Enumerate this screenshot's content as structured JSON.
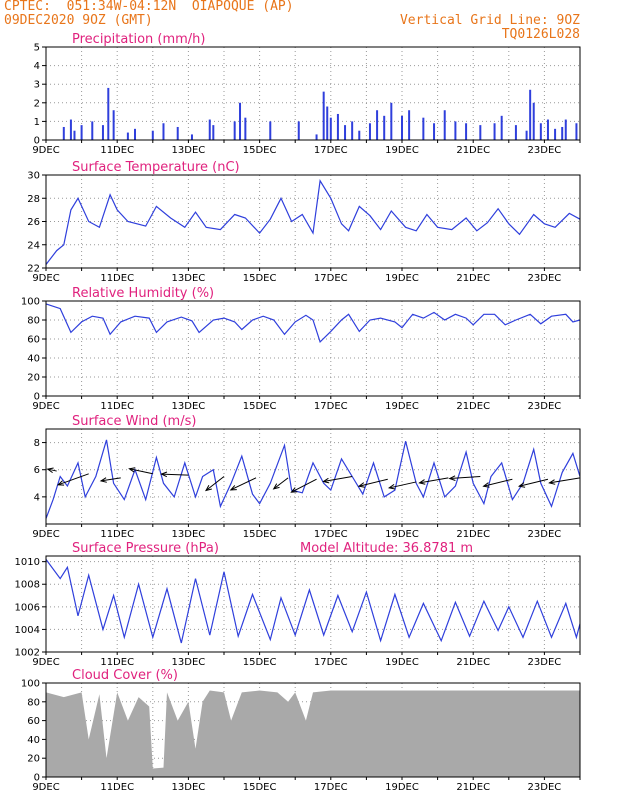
{
  "header": {
    "line1_left": "CPTEC:  051:34W-04:12N  OIAPOQUE (AP)",
    "line2_left": "09DEC2020 9OZ (GMT)",
    "line2_right": "Vertical Grid Line: 9OZ",
    "line3_right": "TQ0126L028"
  },
  "colors": {
    "line": "#2f3fdc",
    "title": "#e0227e",
    "header": "#e8751a",
    "cloud": "#a9a9a9",
    "arrow": "#000000"
  },
  "x_axis": {
    "tick_labels": [
      "9DEC",
      "11DEC",
      "13DEC",
      "15DEC",
      "17DEC",
      "19DEC",
      "21DEC",
      "23DEC"
    ],
    "day_range": [
      0,
      15
    ]
  },
  "chart_data": [
    {
      "type": "bar",
      "title": "Precipitation (mm/h)",
      "ylim": [
        0,
        5
      ],
      "yticks": [
        "0",
        "1",
        "2",
        "3",
        "4",
        "5"
      ],
      "grid": true,
      "points": [
        [
          0.5,
          0.7
        ],
        [
          0.7,
          1.1
        ],
        [
          0.8,
          0.5
        ],
        [
          1.0,
          0.8
        ],
        [
          1.3,
          1.0
        ],
        [
          1.6,
          0.8
        ],
        [
          1.75,
          2.8
        ],
        [
          1.9,
          1.6
        ],
        [
          2.3,
          0.4
        ],
        [
          2.5,
          0.6
        ],
        [
          3.0,
          0.5
        ],
        [
          3.3,
          0.9
        ],
        [
          3.7,
          0.7
        ],
        [
          4.1,
          0.3
        ],
        [
          4.6,
          1.1
        ],
        [
          4.7,
          0.8
        ],
        [
          5.3,
          1.0
        ],
        [
          5.45,
          2.0
        ],
        [
          5.6,
          1.2
        ],
        [
          6.3,
          1.0
        ],
        [
          7.1,
          1.0
        ],
        [
          7.6,
          0.3
        ],
        [
          7.8,
          2.6
        ],
        [
          7.9,
          1.8
        ],
        [
          8.0,
          1.2
        ],
        [
          8.2,
          1.4
        ],
        [
          8.4,
          0.8
        ],
        [
          8.6,
          1.0
        ],
        [
          8.8,
          0.5
        ],
        [
          9.1,
          0.9
        ],
        [
          9.3,
          1.6
        ],
        [
          9.5,
          1.3
        ],
        [
          9.7,
          2.0
        ],
        [
          10.0,
          1.3
        ],
        [
          10.2,
          1.6
        ],
        [
          10.6,
          1.2
        ],
        [
          10.9,
          0.9
        ],
        [
          11.2,
          1.6
        ],
        [
          11.5,
          1.0
        ],
        [
          11.8,
          0.9
        ],
        [
          12.2,
          0.8
        ],
        [
          12.6,
          0.9
        ],
        [
          12.8,
          1.3
        ],
        [
          13.2,
          0.8
        ],
        [
          13.5,
          0.5
        ],
        [
          13.6,
          2.7
        ],
        [
          13.7,
          2.0
        ],
        [
          13.9,
          0.9
        ],
        [
          14.1,
          1.1
        ],
        [
          14.3,
          0.6
        ],
        [
          14.5,
          0.7
        ],
        [
          14.6,
          1.1
        ],
        [
          14.9,
          0.9
        ]
      ]
    },
    {
      "type": "line",
      "title": "Surface Temperature (nC)",
      "ylim": [
        22,
        30
      ],
      "yticks": [
        "22",
        "24",
        "26",
        "28",
        "30"
      ],
      "grid": true,
      "points": [
        [
          0,
          22.3
        ],
        [
          0.3,
          23.5
        ],
        [
          0.5,
          24.0
        ],
        [
          0.7,
          27.0
        ],
        [
          0.9,
          28.0
        ],
        [
          1.2,
          26.0
        ],
        [
          1.5,
          25.5
        ],
        [
          1.8,
          28.3
        ],
        [
          2.0,
          27.0
        ],
        [
          2.3,
          26.0
        ],
        [
          2.8,
          25.6
        ],
        [
          3.1,
          27.3
        ],
        [
          3.5,
          26.3
        ],
        [
          3.9,
          25.5
        ],
        [
          4.2,
          26.8
        ],
        [
          4.5,
          25.5
        ],
        [
          4.9,
          25.3
        ],
        [
          5.3,
          26.6
        ],
        [
          5.6,
          26.3
        ],
        [
          6.0,
          25.0
        ],
        [
          6.3,
          26.2
        ],
        [
          6.6,
          28.0
        ],
        [
          6.9,
          26.0
        ],
        [
          7.2,
          26.6
        ],
        [
          7.5,
          25.0
        ],
        [
          7.7,
          29.5
        ],
        [
          8.0,
          28.0
        ],
        [
          8.3,
          25.8
        ],
        [
          8.5,
          25.2
        ],
        [
          8.8,
          27.3
        ],
        [
          9.1,
          26.5
        ],
        [
          9.4,
          25.3
        ],
        [
          9.7,
          26.9
        ],
        [
          10.1,
          25.5
        ],
        [
          10.4,
          25.2
        ],
        [
          10.7,
          26.6
        ],
        [
          11.0,
          25.5
        ],
        [
          11.4,
          25.3
        ],
        [
          11.8,
          26.3
        ],
        [
          12.1,
          25.2
        ],
        [
          12.4,
          25.9
        ],
        [
          12.7,
          27.1
        ],
        [
          13.0,
          25.8
        ],
        [
          13.3,
          24.9
        ],
        [
          13.7,
          26.6
        ],
        [
          14.0,
          25.8
        ],
        [
          14.3,
          25.5
        ],
        [
          14.7,
          26.7
        ],
        [
          15.0,
          26.2
        ]
      ]
    },
    {
      "type": "line",
      "title": "Relative Humidity (%)",
      "ylim": [
        0,
        100
      ],
      "yticks": [
        "0",
        "20",
        "40",
        "60",
        "80",
        "100"
      ],
      "grid": true,
      "points": [
        [
          0,
          97
        ],
        [
          0.4,
          92
        ],
        [
          0.7,
          67
        ],
        [
          1.0,
          78
        ],
        [
          1.3,
          84
        ],
        [
          1.6,
          82
        ],
        [
          1.8,
          65
        ],
        [
          2.1,
          78
        ],
        [
          2.5,
          84
        ],
        [
          2.9,
          82
        ],
        [
          3.1,
          67
        ],
        [
          3.4,
          78
        ],
        [
          3.8,
          83
        ],
        [
          4.1,
          79
        ],
        [
          4.3,
          67
        ],
        [
          4.7,
          80
        ],
        [
          5.0,
          82
        ],
        [
          5.3,
          78
        ],
        [
          5.5,
          70
        ],
        [
          5.8,
          80
        ],
        [
          6.1,
          84
        ],
        [
          6.4,
          80
        ],
        [
          6.7,
          65
        ],
        [
          7.0,
          78
        ],
        [
          7.3,
          85
        ],
        [
          7.5,
          80
        ],
        [
          7.7,
          57
        ],
        [
          8.0,
          68
        ],
        [
          8.3,
          80
        ],
        [
          8.5,
          86
        ],
        [
          8.8,
          68
        ],
        [
          9.1,
          80
        ],
        [
          9.4,
          82
        ],
        [
          9.8,
          78
        ],
        [
          10.0,
          72
        ],
        [
          10.3,
          86
        ],
        [
          10.6,
          82
        ],
        [
          10.9,
          88
        ],
        [
          11.2,
          80
        ],
        [
          11.5,
          86
        ],
        [
          11.8,
          82
        ],
        [
          12.0,
          75
        ],
        [
          12.3,
          86
        ],
        [
          12.6,
          86
        ],
        [
          12.9,
          75
        ],
        [
          13.2,
          80
        ],
        [
          13.6,
          86
        ],
        [
          13.9,
          76
        ],
        [
          14.2,
          84
        ],
        [
          14.6,
          86
        ],
        [
          14.8,
          78
        ],
        [
          15.0,
          80
        ]
      ]
    },
    {
      "type": "line",
      "title": "Surface Wind (m/s)",
      "ylim": [
        2,
        9
      ],
      "yticks": [
        "4",
        "6",
        "8"
      ],
      "grid": true,
      "points": [
        [
          0,
          2.4
        ],
        [
          0.2,
          3.8
        ],
        [
          0.4,
          5.5
        ],
        [
          0.6,
          4.8
        ],
        [
          0.9,
          6.5
        ],
        [
          1.1,
          4.0
        ],
        [
          1.4,
          5.5
        ],
        [
          1.7,
          8.2
        ],
        [
          1.9,
          5.0
        ],
        [
          2.2,
          3.8
        ],
        [
          2.5,
          6.0
        ],
        [
          2.8,
          3.8
        ],
        [
          3.1,
          6.9
        ],
        [
          3.3,
          5.0
        ],
        [
          3.6,
          4.0
        ],
        [
          3.9,
          6.5
        ],
        [
          4.2,
          4.0
        ],
        [
          4.4,
          5.5
        ],
        [
          4.7,
          6.0
        ],
        [
          4.9,
          3.3
        ],
        [
          5.2,
          5.0
        ],
        [
          5.5,
          7.0
        ],
        [
          5.8,
          4.2
        ],
        [
          6.0,
          3.5
        ],
        [
          6.3,
          5.0
        ],
        [
          6.7,
          7.8
        ],
        [
          6.9,
          4.5
        ],
        [
          7.2,
          4.3
        ],
        [
          7.5,
          6.5
        ],
        [
          7.8,
          5.0
        ],
        [
          8.0,
          4.5
        ],
        [
          8.3,
          6.8
        ],
        [
          8.6,
          5.5
        ],
        [
          8.9,
          4.2
        ],
        [
          9.2,
          6.5
        ],
        [
          9.5,
          4.0
        ],
        [
          9.8,
          4.5
        ],
        [
          10.1,
          8.1
        ],
        [
          10.4,
          5.0
        ],
        [
          10.6,
          4.0
        ],
        [
          10.9,
          6.5
        ],
        [
          11.2,
          4.0
        ],
        [
          11.5,
          4.8
        ],
        [
          11.8,
          7.3
        ],
        [
          12.0,
          5.0
        ],
        [
          12.3,
          3.5
        ],
        [
          12.5,
          5.5
        ],
        [
          12.8,
          6.5
        ],
        [
          13.1,
          3.8
        ],
        [
          13.4,
          5.0
        ],
        [
          13.7,
          7.5
        ],
        [
          13.9,
          5.0
        ],
        [
          14.2,
          3.3
        ],
        [
          14.5,
          5.8
        ],
        [
          14.8,
          7.2
        ],
        [
          15.0,
          5.5
        ]
      ],
      "vectors": [
        [
          0.3,
          5.9,
          -0.5,
          0.2
        ],
        [
          1.2,
          5.7,
          -1.7,
          -1.1
        ],
        [
          2.1,
          5.4,
          -1.1,
          -0.3
        ],
        [
          3.0,
          5.7,
          -1.3,
          0.5
        ],
        [
          4.0,
          5.6,
          -1.5,
          0.1
        ],
        [
          5.0,
          5.5,
          -1.0,
          -1.4
        ],
        [
          5.9,
          5.4,
          -1.4,
          -1.2
        ],
        [
          6.8,
          5.4,
          -0.8,
          -1.1
        ],
        [
          7.6,
          5.3,
          -1.4,
          -1.3
        ],
        [
          8.6,
          5.5,
          -1.6,
          -0.5
        ],
        [
          9.6,
          5.3,
          -1.6,
          -0.7
        ],
        [
          10.4,
          5.1,
          -1.5,
          -0.6
        ],
        [
          11.3,
          5.4,
          -1.6,
          -0.5
        ],
        [
          12.2,
          5.5,
          -1.7,
          -0.2
        ],
        [
          13.1,
          5.3,
          -1.6,
          -0.7
        ],
        [
          14.1,
          5.3,
          -1.6,
          -0.7
        ],
        [
          15.0,
          5.4,
          -1.7,
          -0.5
        ]
      ]
    },
    {
      "type": "line",
      "title": "Surface Pressure (hPa)",
      "subtitle": "Model Altitude: 36.8781 m",
      "ylim": [
        1002,
        1010.5
      ],
      "yticks": [
        "1002",
        "1004",
        "1006",
        "1008",
        "1010"
      ],
      "grid": true,
      "points": [
        [
          0,
          1010.2
        ],
        [
          0.4,
          1008.5
        ],
        [
          0.6,
          1009.5
        ],
        [
          0.9,
          1005.2
        ],
        [
          1.2,
          1008.8
        ],
        [
          1.6,
          1004.0
        ],
        [
          1.9,
          1007.0
        ],
        [
          2.2,
          1003.3
        ],
        [
          2.6,
          1008.0
        ],
        [
          3.0,
          1003.3
        ],
        [
          3.4,
          1007.6
        ],
        [
          3.8,
          1002.8
        ],
        [
          4.2,
          1008.5
        ],
        [
          4.6,
          1003.5
        ],
        [
          5.0,
          1009.1
        ],
        [
          5.4,
          1003.4
        ],
        [
          5.8,
          1007.1
        ],
        [
          6.3,
          1003.1
        ],
        [
          6.6,
          1006.8
        ],
        [
          7.0,
          1003.5
        ],
        [
          7.4,
          1007.5
        ],
        [
          7.8,
          1003.5
        ],
        [
          8.2,
          1007.0
        ],
        [
          8.6,
          1003.8
        ],
        [
          9.0,
          1007.3
        ],
        [
          9.4,
          1003.0
        ],
        [
          9.8,
          1007.1
        ],
        [
          10.2,
          1003.3
        ],
        [
          10.6,
          1006.3
        ],
        [
          11.1,
          1003.0
        ],
        [
          11.5,
          1006.4
        ],
        [
          11.9,
          1003.4
        ],
        [
          12.3,
          1006.5
        ],
        [
          12.7,
          1003.9
        ],
        [
          13.0,
          1006.0
        ],
        [
          13.4,
          1003.3
        ],
        [
          13.8,
          1006.5
        ],
        [
          14.2,
          1003.3
        ],
        [
          14.6,
          1006.3
        ],
        [
          14.9,
          1003.3
        ],
        [
          15.0,
          1004.5
        ]
      ]
    },
    {
      "type": "area",
      "title": "Cloud Cover (%)",
      "ylim": [
        0,
        100
      ],
      "yticks": [
        "0",
        "20",
        "40",
        "60",
        "80",
        "100"
      ],
      "grid": true,
      "points": [
        [
          0,
          90
        ],
        [
          0.5,
          85
        ],
        [
          1.0,
          90
        ],
        [
          1.2,
          40
        ],
        [
          1.5,
          88
        ],
        [
          1.7,
          20
        ],
        [
          2.0,
          90
        ],
        [
          2.3,
          60
        ],
        [
          2.6,
          85
        ],
        [
          2.9,
          75
        ],
        [
          3.0,
          9
        ],
        [
          3.3,
          10
        ],
        [
          3.4,
          90
        ],
        [
          3.7,
          60
        ],
        [
          4.0,
          80
        ],
        [
          4.2,
          30
        ],
        [
          4.4,
          80
        ],
        [
          4.6,
          92
        ],
        [
          5.0,
          90
        ],
        [
          5.2,
          60
        ],
        [
          5.5,
          90
        ],
        [
          6.0,
          92
        ],
        [
          6.5,
          90
        ],
        [
          6.8,
          80
        ],
        [
          7.0,
          90
        ],
        [
          7.3,
          60
        ],
        [
          7.5,
          90
        ],
        [
          8.0,
          92
        ],
        [
          8.5,
          92
        ],
        [
          9.0,
          92
        ],
        [
          9.5,
          92
        ],
        [
          10.0,
          92
        ],
        [
          10.5,
          92
        ],
        [
          11.0,
          92
        ],
        [
          11.5,
          92
        ],
        [
          12.0,
          92
        ],
        [
          12.5,
          92
        ],
        [
          13.0,
          92
        ],
        [
          13.5,
          92
        ],
        [
          14.0,
          92
        ],
        [
          14.5,
          92
        ],
        [
          15.0,
          92
        ]
      ]
    }
  ]
}
